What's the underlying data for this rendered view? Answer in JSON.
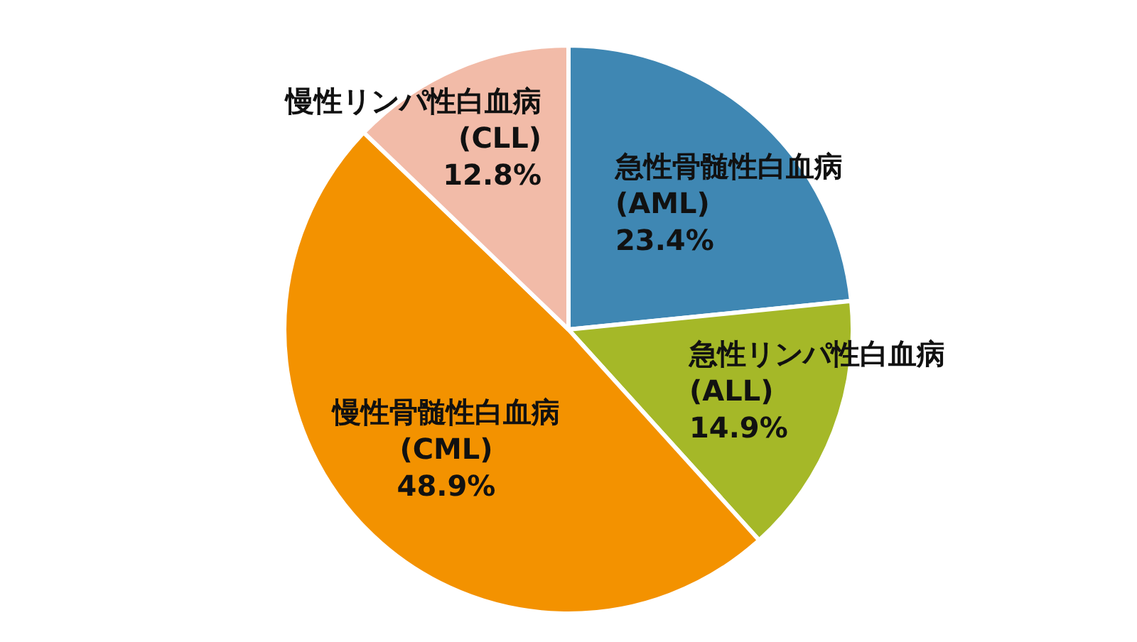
{
  "chart_data": {
    "type": "pie",
    "categories": [
      "急性骨髄性白血病\n(AML)",
      "急性リンパ性白血病\n(ALL)",
      "慢性骨髄性白血病\n(CML)",
      "慢性リンパ性白血病\n(CLL)"
    ],
    "values": [
      23.4,
      14.9,
      48.9,
      12.8
    ],
    "value_labels": [
      "23.4%",
      "14.9%",
      "48.9%",
      "12.8%"
    ],
    "colors": [
      "#3f87b3",
      "#a5b828",
      "#f39200",
      "#f2bba8"
    ],
    "legend": false
  }
}
